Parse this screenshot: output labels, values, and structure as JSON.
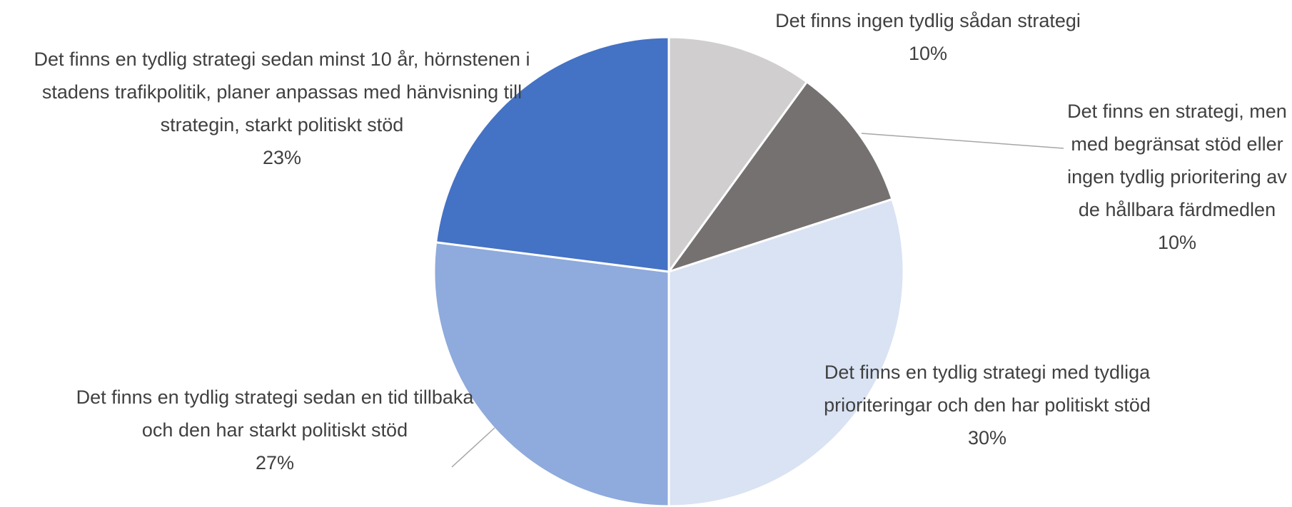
{
  "chart_data": {
    "type": "pie",
    "categories": [
      "Det finns ingen tydlig sådan strategi",
      "Det finns en strategi, men med begränsat stöd eller ingen tydlig prioritering av de hållbara färdmedlen",
      "Det finns en tydlig strategi med tydliga prioriteringar och den har politiskt stöd",
      "Det finns en tydlig strategi sedan en tid tillbaka och den har starkt politiskt stöd",
      "Det finns en tydlig strategi sedan minst 10 år, hörnstenen i stadens trafikpolitik, planer anpassas med hänvisning till strategin, starkt politiskt stöd"
    ],
    "values": [
      10,
      10,
      30,
      27,
      23
    ],
    "value_labels": [
      "10%",
      "10%",
      "30%",
      "27%",
      "23%"
    ],
    "colors": [
      "#d0cece",
      "#767171",
      "#dae3f3",
      "#8faadc",
      "#4472c4"
    ]
  }
}
